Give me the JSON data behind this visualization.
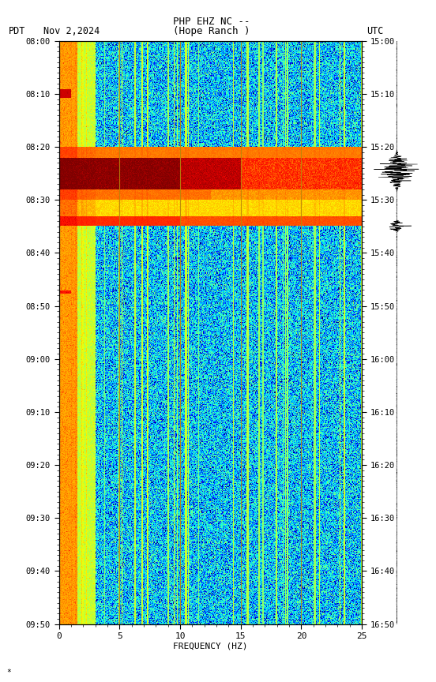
{
  "title_line1": "PHP EHZ NC --",
  "title_line2": "(Hope Ranch )",
  "left_label": "PDT",
  "date_label": "Nov 2,2024",
  "right_label": "UTC",
  "xlabel": "FREQUENCY (HZ)",
  "xmin": 0,
  "xmax": 25,
  "freq_ticks": [
    0,
    5,
    10,
    15,
    20,
    25
  ],
  "pdt_ticks": [
    "08:00",
    "08:10",
    "08:20",
    "08:30",
    "08:40",
    "08:50",
    "09:00",
    "09:10",
    "09:20",
    "09:30",
    "09:40",
    "09:50"
  ],
  "utc_ticks": [
    "15:00",
    "15:10",
    "15:20",
    "15:30",
    "15:40",
    "15:50",
    "16:00",
    "16:10",
    "16:20",
    "16:30",
    "16:40",
    "16:50"
  ],
  "n_time": 700,
  "n_freq": 500,
  "fig_bg": "#ffffff",
  "colormap": "jet",
  "vertical_lines_freq": [
    5,
    10,
    15,
    20
  ],
  "vertical_line_color": "#b8860b"
}
